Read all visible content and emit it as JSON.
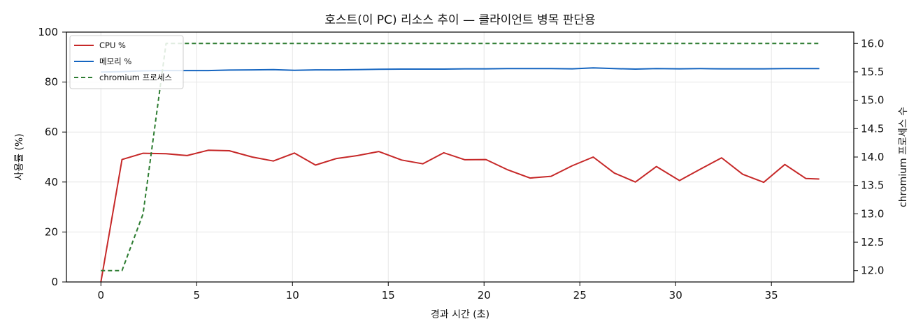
{
  "chart_data": {
    "type": "line",
    "title": "호스트(이 PC) 리소스 추이 — 클라이언트 병목 판단용",
    "xlabel": "경과 시간 (초)",
    "ylabel_left": "사용률 (%)",
    "ylabel_right": "chromium 프로세스 수",
    "xlim": [
      -1.8,
      39.3
    ],
    "ylim_left": [
      0,
      100
    ],
    "ylim_right": [
      11.8,
      16.2
    ],
    "xticks": [
      0,
      5,
      10,
      15,
      20,
      25,
      30,
      35
    ],
    "yticks_left": [
      0,
      20,
      40,
      60,
      80,
      100
    ],
    "yticks_right": [
      "12.0",
      "12.5",
      "13.0",
      "13.5",
      "14.0",
      "14.5",
      "15.0",
      "15.5",
      "16.0"
    ],
    "grid": true,
    "legend_position": "top-left",
    "x": [
      0,
      1.1,
      2.2,
      3.4,
      4.5,
      5.6,
      6.7,
      7.9,
      9.0,
      10.1,
      11.2,
      12.3,
      13.4,
      14.5,
      15.7,
      16.8,
      17.9,
      19.0,
      20.1,
      21.2,
      22.4,
      23.5,
      24.6,
      25.7,
      26.8,
      27.9,
      29.0,
      30.2,
      31.3,
      32.4,
      33.5,
      34.6,
      35.7,
      36.8,
      37.5
    ],
    "series": [
      {
        "name": "CPU %",
        "axis": "left",
        "color": "#c62828",
        "style": "solid",
        "values": [
          0,
          49,
          51.5,
          51.3,
          50.6,
          52.7,
          52.5,
          50.0,
          48.4,
          51.6,
          46.8,
          49.4,
          50.6,
          52.2,
          48.8,
          47.3,
          51.7,
          48.9,
          49.0,
          45.0,
          41.6,
          42.3,
          46.5,
          50.0,
          43.6,
          40.0,
          46.2,
          40.6,
          45.2,
          49.7,
          43.1,
          39.9,
          47.0,
          41.4,
          41.2
        ]
      },
      {
        "name": "메모리 %",
        "axis": "left",
        "color": "#1565c0",
        "style": "solid",
        "values": [
          84.0,
          84.2,
          84.5,
          84.6,
          84.6,
          84.6,
          84.8,
          84.9,
          85.0,
          84.7,
          84.9,
          84.9,
          85.0,
          85.1,
          85.2,
          85.2,
          85.2,
          85.3,
          85.3,
          85.4,
          85.4,
          85.4,
          85.3,
          85.7,
          85.4,
          85.2,
          85.4,
          85.3,
          85.4,
          85.3,
          85.3,
          85.3,
          85.4,
          85.4,
          85.4
        ]
      },
      {
        "name": "chromium 프로세스",
        "axis": "right",
        "color": "#2e7d32",
        "style": "dashed",
        "values": [
          12,
          12,
          13,
          16,
          16,
          16,
          16,
          16,
          16,
          16,
          16,
          16,
          16,
          16,
          16,
          16,
          16,
          16,
          16,
          16,
          16,
          16,
          16,
          16,
          16,
          16,
          16,
          16,
          16,
          16,
          16,
          16,
          16,
          16,
          16
        ]
      }
    ]
  }
}
